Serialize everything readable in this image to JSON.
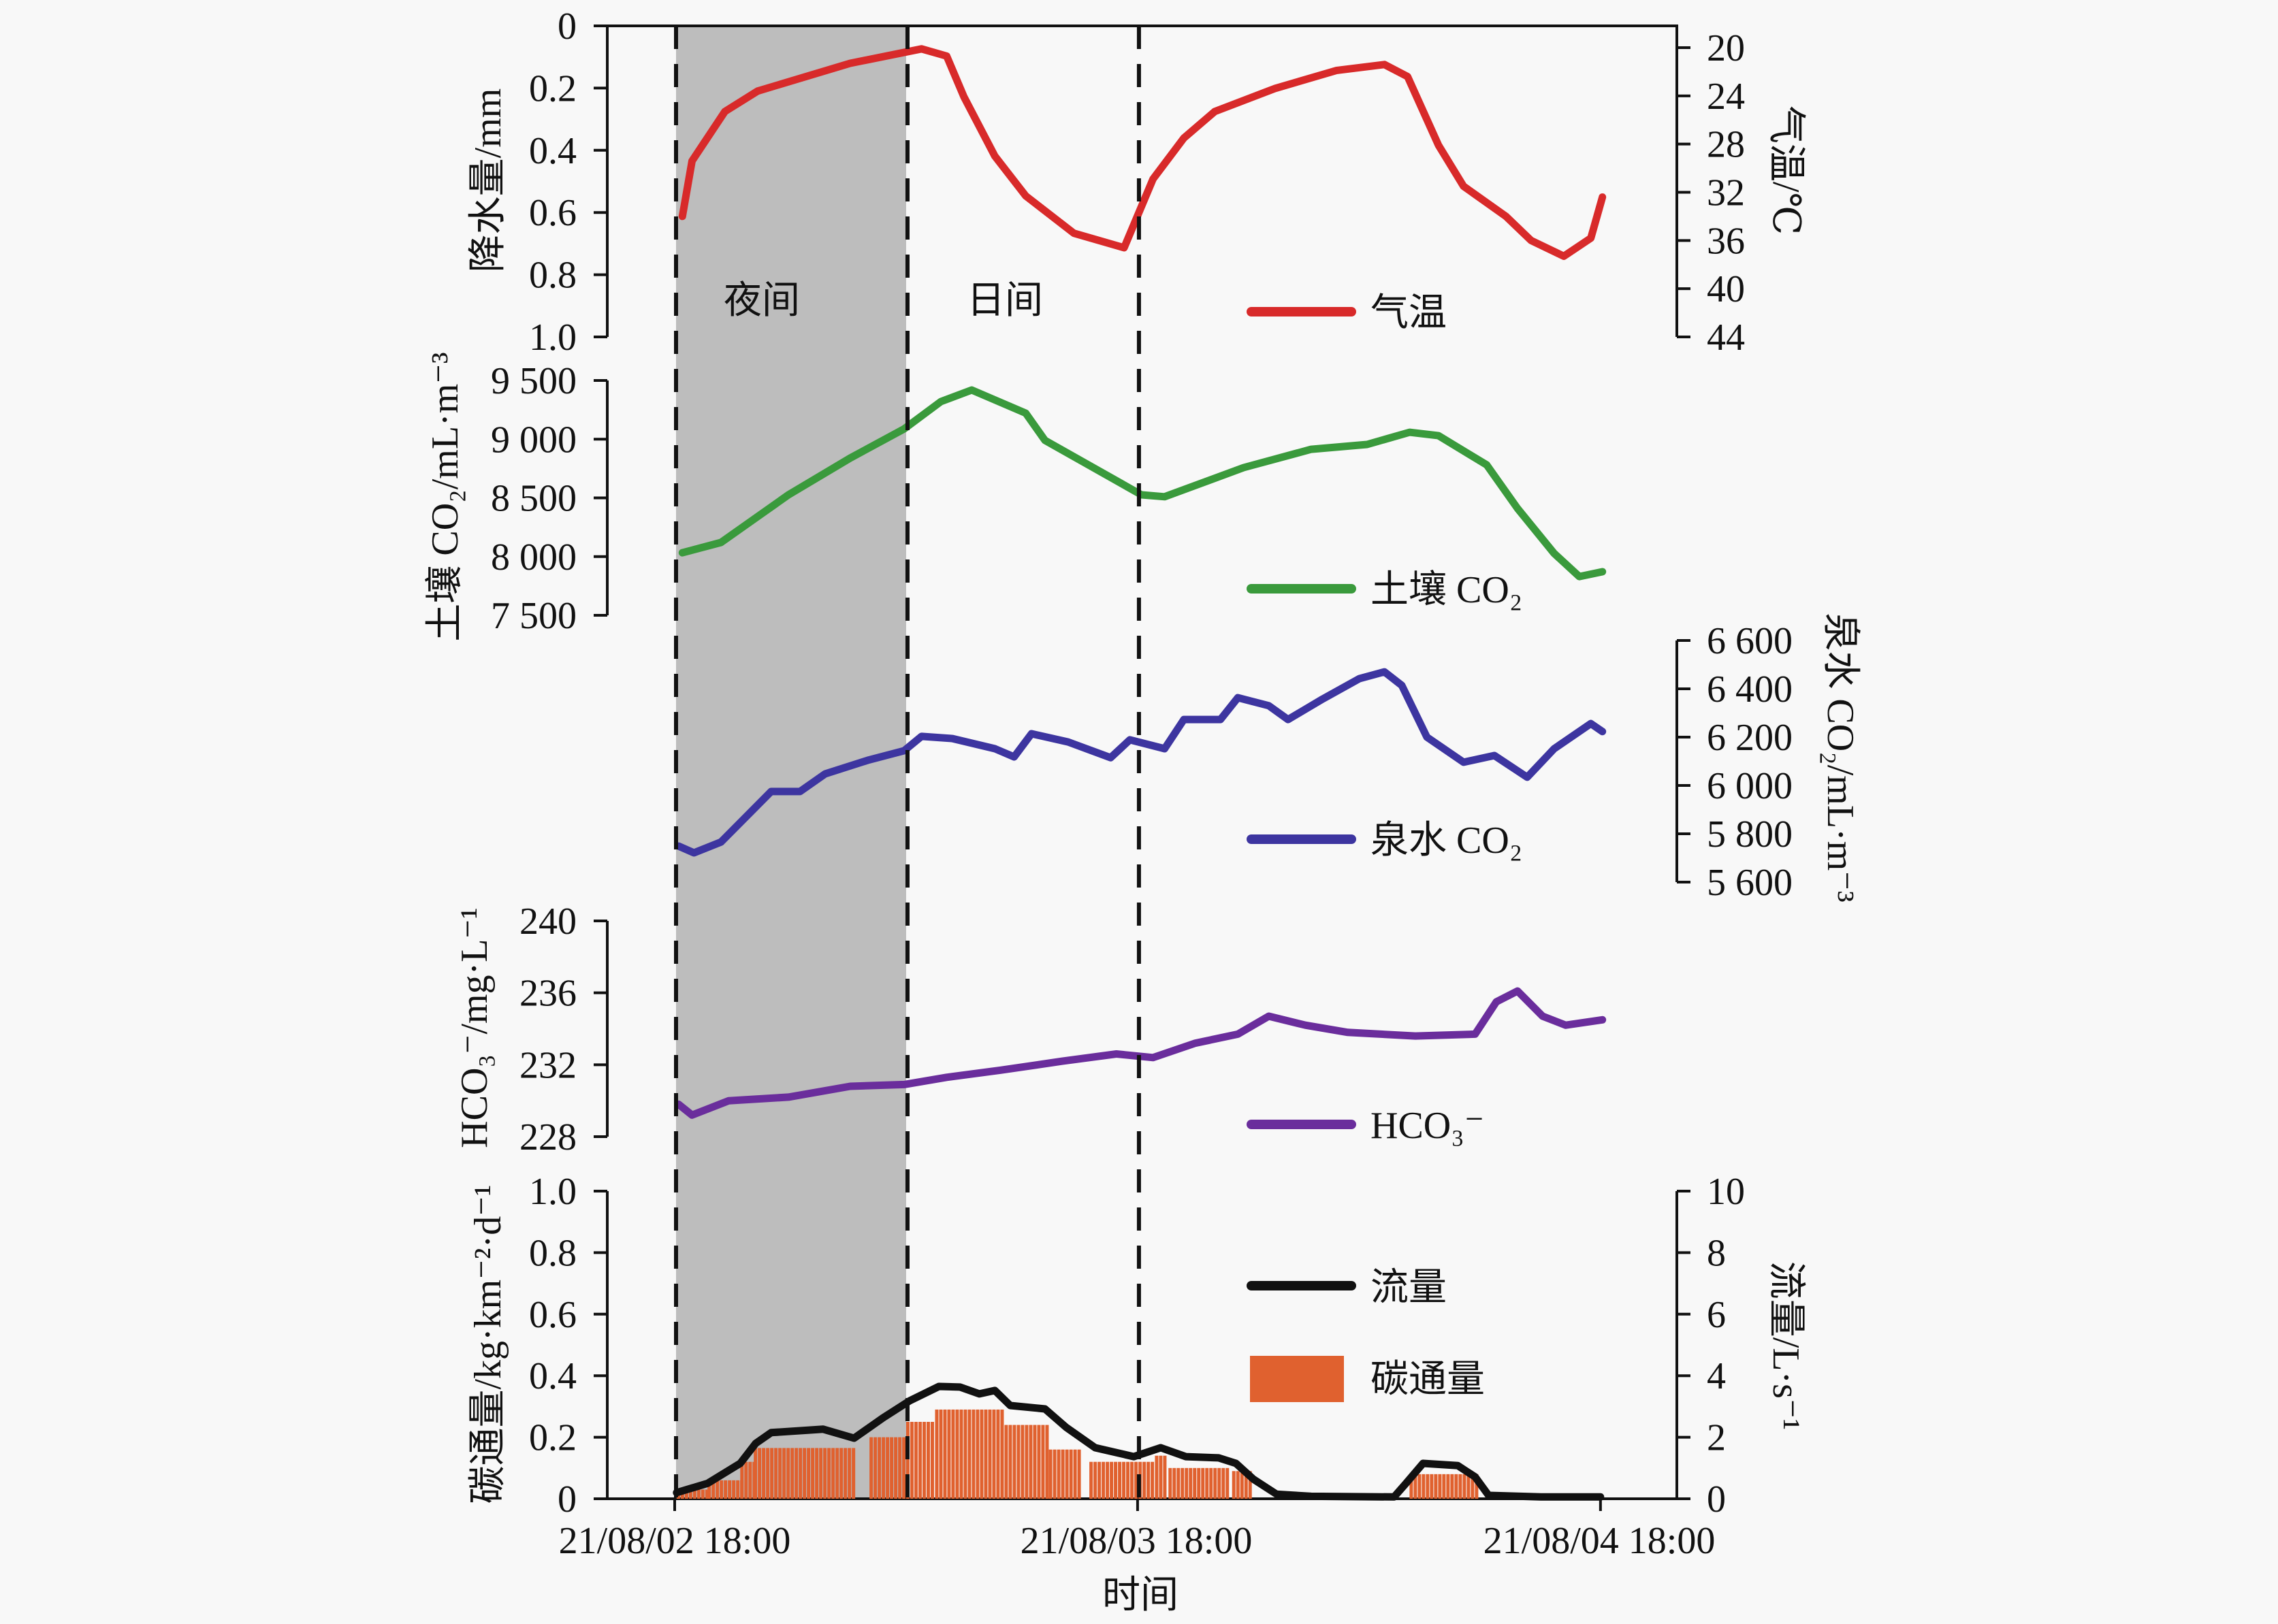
{
  "chart_data": {
    "type": "line",
    "x_unit": "hours since 21/08/02 18:00",
    "x_range": [
      0,
      48
    ],
    "x_axis": {
      "title": "时间",
      "ticks": [
        {
          "h": 0,
          "label": "21/08/02 18:00"
        },
        {
          "h": 24,
          "label": "21/08/03 18:00"
        },
        {
          "h": 48,
          "label": "21/08/04 18:00"
        }
      ]
    },
    "periods": [
      {
        "label": "夜间",
        "start_h": 0,
        "end_h": 12,
        "shaded": true
      },
      {
        "label": "日间",
        "start_h": 12,
        "end_h": 24,
        "shaded": false
      }
    ],
    "panels": [
      {
        "id": "temperature",
        "left_axis": {
          "title": "降水量/mm",
          "range": [
            0,
            1.0
          ],
          "inverted": true,
          "ticks": [
            "0",
            "0.2",
            "0.4",
            "0.6",
            "0.8",
            "1.0"
          ],
          "tick_values": [
            0,
            0.2,
            0.4,
            0.6,
            0.8,
            1.0
          ]
        },
        "right_axis": {
          "title": "气温/℃",
          "range": [
            20,
            44
          ],
          "inverted": true,
          "ticks": [
            "20",
            "24",
            "28",
            "32",
            "36",
            "40",
            "44"
          ],
          "tick_values": [
            20,
            24,
            28,
            32,
            36,
            40,
            44
          ]
        },
        "series": [
          {
            "name": "气温",
            "axis": "right",
            "color": "#d82a2a",
            "points": [
              [
                0.4,
                34.0
              ],
              [
                0.9,
                29.4
              ],
              [
                2.6,
                25.3
              ],
              [
                4.3,
                23.6
              ],
              [
                9.1,
                21.3
              ],
              [
                12.8,
                20.1
              ],
              [
                14.1,
                20.7
              ],
              [
                15.0,
                24.1
              ],
              [
                16.6,
                29.0
              ],
              [
                18.2,
                32.3
              ],
              [
                20.7,
                35.4
              ],
              [
                23.3,
                36.6
              ],
              [
                24.8,
                30.9
              ],
              [
                26.4,
                27.5
              ],
              [
                28.0,
                25.3
              ],
              [
                31.1,
                23.4
              ],
              [
                34.3,
                21.9
              ],
              [
                36.8,
                21.4
              ],
              [
                38.0,
                22.4
              ],
              [
                39.6,
                28.1
              ],
              [
                40.9,
                31.5
              ],
              [
                43.1,
                34.0
              ],
              [
                44.4,
                36.0
              ],
              [
                46.1,
                37.3
              ],
              [
                47.5,
                35.8
              ],
              [
                48.1,
                32.4
              ]
            ]
          }
        ]
      },
      {
        "id": "soil-co2",
        "left_axis": {
          "title": "土壤 CO₂/mL·m⁻³",
          "range": [
            7500,
            9500
          ],
          "ticks": [
            "7 500",
            "8 000",
            "8 500",
            "9 000",
            "9 500"
          ],
          "tick_values": [
            7500,
            8000,
            8500,
            9000,
            9500
          ]
        },
        "series": [
          {
            "name": "土壤 CO₂",
            "axis": "left",
            "color": "#3a9a3c",
            "points": [
              [
                0.4,
                8033
              ],
              [
                2.4,
                8120
              ],
              [
                5.9,
                8526
              ],
              [
                9.1,
                8839
              ],
              [
                11.9,
                9088
              ],
              [
                13.8,
                9320
              ],
              [
                15.4,
                9419
              ],
              [
                18.2,
                9222
              ],
              [
                19.2,
                8990
              ],
              [
                21.7,
                8758
              ],
              [
                24.2,
                8526
              ],
              [
                25.4,
                8510
              ],
              [
                29.5,
                8758
              ],
              [
                33.0,
                8914
              ],
              [
                35.9,
                8955
              ],
              [
                38.1,
                9059
              ],
              [
                39.6,
                9030
              ],
              [
                42.1,
                8781
              ],
              [
                43.7,
                8410
              ],
              [
                45.6,
                8027
              ],
              [
                46.9,
                7830
              ],
              [
                48.1,
                7871
              ]
            ]
          }
        ]
      },
      {
        "id": "spring-co2",
        "right_axis": {
          "title": "泉水 CO₂/mL·m⁻³",
          "range": [
            5600,
            6600
          ],
          "ticks": [
            "5 600",
            "5 800",
            "6 000",
            "6 200",
            "6 400",
            "6 600"
          ],
          "tick_values": [
            5600,
            5800,
            6000,
            6200,
            6400,
            6600
          ]
        },
        "series": [
          {
            "name": "泉水 CO₂",
            "axis": "right",
            "color": "#3d35a0",
            "points": [
              [
                0.2,
                5749
              ],
              [
                1.0,
                5721
              ],
              [
                2.4,
                5766
              ],
              [
                5.0,
                5975
              ],
              [
                6.5,
                5975
              ],
              [
                7.8,
                6048
              ],
              [
                10.0,
                6104
              ],
              [
                11.9,
                6144
              ],
              [
                12.8,
                6203
              ],
              [
                14.4,
                6194
              ],
              [
                16.6,
                6152
              ],
              [
                17.6,
                6118
              ],
              [
                18.5,
                6214
              ],
              [
                20.4,
                6180
              ],
              [
                22.6,
                6115
              ],
              [
                23.6,
                6189
              ],
              [
                25.4,
                6152
              ],
              [
                26.4,
                6273
              ],
              [
                28.3,
                6273
              ],
              [
                29.2,
                6363
              ],
              [
                30.8,
                6330
              ],
              [
                31.8,
                6273
              ],
              [
                33.6,
                6358
              ],
              [
                35.5,
                6442
              ],
              [
                36.8,
                6470
              ],
              [
                37.7,
                6414
              ],
              [
                39.0,
                6200
              ],
              [
                40.9,
                6096
              ],
              [
                42.5,
                6124
              ],
              [
                44.2,
                6034
              ],
              [
                45.6,
                6152
              ],
              [
                47.5,
                6256
              ],
              [
                48.1,
                6223
              ]
            ]
          }
        ]
      },
      {
        "id": "hco3",
        "left_axis": {
          "title": "HCO₃⁻/mg·L⁻¹",
          "range": [
            228,
            240
          ],
          "ticks": [
            "228",
            "232",
            "236",
            "240"
          ],
          "tick_values": [
            228,
            232,
            236,
            240
          ]
        },
        "series": [
          {
            "name": "HCO₃⁻",
            "axis": "left",
            "color": "#6a2d9c",
            "points": [
              [
                0.2,
                229.8
              ],
              [
                0.9,
                229.2
              ],
              [
                2.8,
                230.0
              ],
              [
                5.9,
                230.2
              ],
              [
                9.1,
                230.8
              ],
              [
                11.9,
                230.9
              ],
              [
                14.1,
                231.3
              ],
              [
                16.9,
                231.7
              ],
              [
                20.1,
                232.2
              ],
              [
                22.9,
                232.6
              ],
              [
                24.8,
                232.4
              ],
              [
                27.0,
                233.2
              ],
              [
                29.2,
                233.7
              ],
              [
                30.8,
                234.7
              ],
              [
                32.7,
                234.2
              ],
              [
                34.9,
                233.8
              ],
              [
                38.4,
                233.6
              ],
              [
                41.5,
                233.7
              ],
              [
                42.6,
                235.5
              ],
              [
                43.7,
                236.1
              ],
              [
                45.0,
                234.7
              ],
              [
                46.2,
                234.2
              ],
              [
                48.1,
                234.5
              ]
            ]
          }
        ]
      },
      {
        "id": "flow-carbon",
        "left_axis": {
          "title": "碳通量/kg·km⁻²·d⁻¹",
          "range": [
            0,
            1.0
          ],
          "ticks": [
            "0",
            "0.2",
            "0.4",
            "0.6",
            "0.8",
            "1.0"
          ],
          "tick_values": [
            0,
            0.2,
            0.4,
            0.6,
            0.8,
            1.0
          ]
        },
        "right_axis": {
          "title": "流量/L·s⁻¹",
          "range": [
            0,
            10
          ],
          "ticks": [
            "0",
            "2",
            "4",
            "6",
            "8",
            "10"
          ],
          "tick_values": [
            0,
            2,
            4,
            6,
            8,
            10
          ]
        },
        "series": [
          {
            "name": "流量",
            "axis": "right",
            "type": "line",
            "color": "#111111",
            "points": [
              [
                0.1,
                0.2
              ],
              [
                1.7,
                0.5
              ],
              [
                3.4,
                1.15
              ],
              [
                4.2,
                1.8
              ],
              [
                5.0,
                2.15
              ],
              [
                7.7,
                2.26
              ],
              [
                9.3,
                1.97
              ],
              [
                10.8,
                2.63
              ],
              [
                12.2,
                3.19
              ],
              [
                13.7,
                3.65
              ],
              [
                14.8,
                3.63
              ],
              [
                15.8,
                3.41
              ],
              [
                16.6,
                3.52
              ],
              [
                17.4,
                3.03
              ],
              [
                19.2,
                2.92
              ],
              [
                20.3,
                2.32
              ],
              [
                21.8,
                1.66
              ],
              [
                23.8,
                1.37
              ],
              [
                25.2,
                1.66
              ],
              [
                26.5,
                1.37
              ],
              [
                28.2,
                1.33
              ],
              [
                29.1,
                1.15
              ],
              [
                30.0,
                0.64
              ],
              [
                31.2,
                0.15
              ],
              [
                33.0,
                0.08
              ],
              [
                37.3,
                0.06
              ],
              [
                37.9,
                0.49
              ],
              [
                38.8,
                1.15
              ],
              [
                40.6,
                1.08
              ],
              [
                41.5,
                0.71
              ],
              [
                42.2,
                0.11
              ],
              [
                44.9,
                0.06
              ],
              [
                48.0,
                0.06
              ]
            ]
          },
          {
            "name": "碳通量",
            "axis": "left",
            "type": "bar",
            "color": "#e0612f",
            "bars": [
              [
                0.1,
                1.7,
                0.03
              ],
              [
                1.7,
                3.4,
                0.06
              ],
              [
                3.4,
                4.1,
                0.12
              ],
              [
                4.1,
                9.3,
                0.165
              ],
              [
                10.1,
                11.9,
                0.2
              ],
              [
                12.0,
                13.3,
                0.25
              ],
              [
                13.5,
                16.9,
                0.29
              ],
              [
                17.1,
                19.4,
                0.24
              ],
              [
                19.4,
                20.9,
                0.16
              ],
              [
                21.5,
                24.7,
                0.12
              ],
              [
                24.9,
                25.4,
                0.14
              ],
              [
                25.6,
                28.7,
                0.1
              ],
              [
                28.9,
                29.8,
                0.09
              ],
              [
                38.1,
                41.5,
                0.08
              ]
            ]
          }
        ]
      }
    ]
  }
}
